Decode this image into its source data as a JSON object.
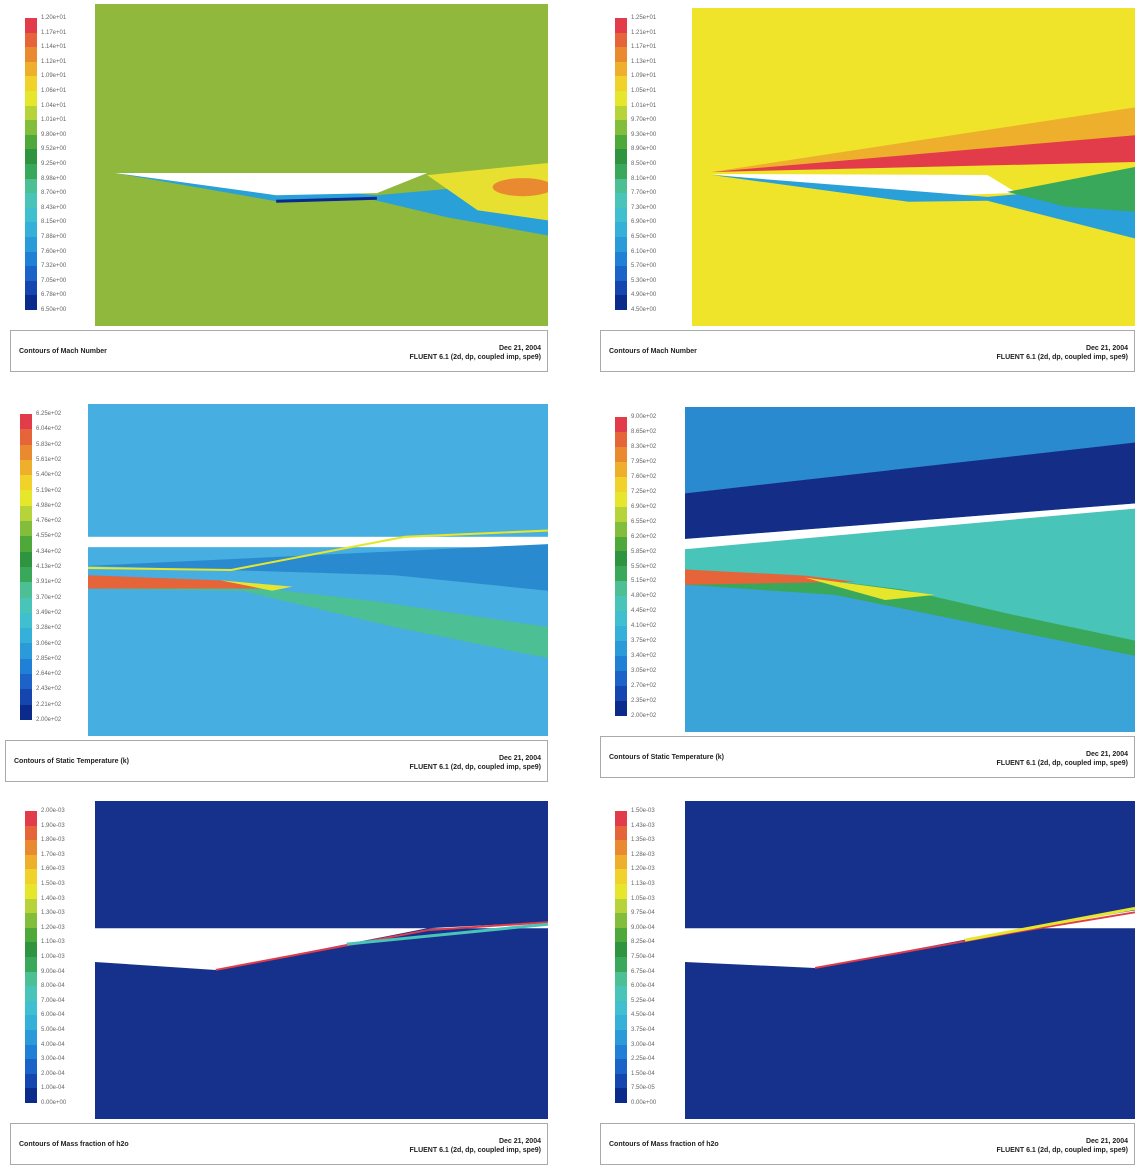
{
  "panels": [
    {
      "caption": "Contours of Mach Number",
      "date": "Dec 21, 2004",
      "solver": "FLUENT 6.1 (2d, dp, coupled imp, spe9)",
      "scale": [
        "1.20e+01",
        "1.17e+01",
        "1.14e+01",
        "1.12e+01",
        "1.09e+01",
        "1.06e+01",
        "1.04e+01",
        "1.01e+01",
        "9.80e+00",
        "9.52e+00",
        "9.25e+00",
        "8.98e+00",
        "8.70e+00",
        "8.43e+00",
        "8.15e+00",
        "7.88e+00",
        "7.60e+00",
        "7.32e+00",
        "7.05e+00",
        "6.78e+00",
        "6.50e+00"
      ]
    },
    {
      "caption": "Contours of Mach Number",
      "date": "Dec 21, 2004",
      "solver": "FLUENT 6.1 (2d, dp, coupled imp, spe9)",
      "scale": [
        "1.25e+01",
        "1.21e+01",
        "1.17e+01",
        "1.13e+01",
        "1.09e+01",
        "1.05e+01",
        "1.01e+01",
        "9.70e+00",
        "9.30e+00",
        "8.90e+00",
        "8.50e+00",
        "8.10e+00",
        "7.70e+00",
        "7.30e+00",
        "6.90e+00",
        "6.50e+00",
        "6.10e+00",
        "5.70e+00",
        "5.30e+00",
        "4.90e+00",
        "4.50e+00"
      ]
    },
    {
      "caption": "Contours of Static Temperature (k)",
      "date": "Dec 21, 2004",
      "solver": "FLUENT 6.1 (2d, dp, coupled imp, spe9)",
      "scale": [
        "6.25e+02",
        "6.04e+02",
        "5.83e+02",
        "5.61e+02",
        "5.40e+02",
        "5.19e+02",
        "4.98e+02",
        "4.76e+02",
        "4.55e+02",
        "4.34e+02",
        "4.13e+02",
        "3.91e+02",
        "3.70e+02",
        "3.49e+02",
        "3.28e+02",
        "3.06e+02",
        "2.85e+02",
        "2.64e+02",
        "2.43e+02",
        "2.21e+02",
        "2.00e+02"
      ]
    },
    {
      "caption": "Contours of Static Temperature (k)",
      "date": "Dec 21, 2004",
      "solver": "FLUENT 6.1 (2d, dp, coupled imp, spe9)",
      "scale": [
        "9.00e+02",
        "8.65e+02",
        "8.30e+02",
        "7.95e+02",
        "7.60e+02",
        "7.25e+02",
        "6.90e+02",
        "6.55e+02",
        "6.20e+02",
        "5.85e+02",
        "5.50e+02",
        "5.15e+02",
        "4.80e+02",
        "4.45e+02",
        "4.10e+02",
        "3.75e+02",
        "3.40e+02",
        "3.05e+02",
        "2.70e+02",
        "2.35e+02",
        "2.00e+02"
      ]
    },
    {
      "caption": "Contours of Mass fraction of h2o",
      "date": "Dec 21, 2004",
      "solver": "FLUENT 6.1 (2d, dp, coupled imp, spe9)",
      "scale": [
        "2.00e-03",
        "1.90e-03",
        "1.80e-03",
        "1.70e-03",
        "1.60e-03",
        "1.50e-03",
        "1.40e-03",
        "1.30e-03",
        "1.20e-03",
        "1.10e-03",
        "1.00e-03",
        "9.00e-04",
        "8.00e-04",
        "7.00e-04",
        "6.00e-04",
        "5.00e-04",
        "4.00e-04",
        "3.00e-04",
        "2.00e-04",
        "1.00e-04",
        "0.00e+00"
      ]
    },
    {
      "caption": "Contours of Mass fraction of h2o",
      "date": "Dec 21, 2004",
      "solver": "FLUENT 6.1 (2d, dp, coupled imp, spe9)",
      "scale": [
        "1.50e-03",
        "1.43e-03",
        "1.35e-03",
        "1.28e-03",
        "1.20e-03",
        "1.13e-03",
        "1.05e-03",
        "9.75e-04",
        "9.00e-04",
        "8.25e-04",
        "7.50e-04",
        "6.75e-04",
        "6.00e-04",
        "5.25e-04",
        "4.50e-04",
        "3.75e-04",
        "3.00e-04",
        "2.25e-04",
        "1.50e-04",
        "7.50e-05",
        "0.00e+00"
      ]
    }
  ]
}
